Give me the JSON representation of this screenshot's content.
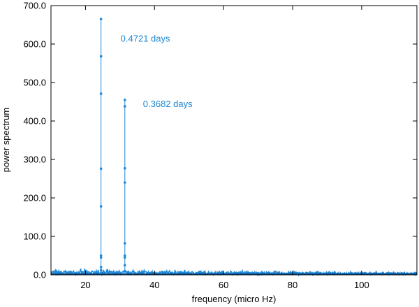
{
  "chart_data": {
    "type": "line",
    "title": "",
    "xlabel": "frequency (micro Hz)",
    "ylabel": "power spectrum",
    "xlim": [
      10,
      116
    ],
    "ylim": [
      0,
      700
    ],
    "x_ticks": [
      20,
      40,
      60,
      80,
      100
    ],
    "y_ticks": [
      0,
      100,
      200,
      300,
      400,
      500,
      600,
      700
    ],
    "x_tick_labels": [
      "20",
      "40",
      "60",
      "80",
      "100"
    ],
    "y_tick_labels": [
      "0.0",
      "100.0",
      "200.0",
      "300.0",
      "400.0",
      "500.0",
      "600.0",
      "700.0"
    ],
    "grid": false,
    "series_color": "#1e88d6",
    "baseline_color": "#0b5aa0",
    "peaks": [
      {
        "frequency": 24.5,
        "power": [
          665,
          568,
          471,
          276,
          178,
          50,
          45,
          20,
          12
        ],
        "label": "0.4721 days"
      },
      {
        "frequency": 31.4,
        "power": [
          455,
          438,
          277,
          240,
          82,
          50,
          45,
          25,
          10
        ],
        "label": "0.3682 days"
      }
    ],
    "noise": {
      "x_range": [
        10,
        116
      ],
      "typical_power": [
        1,
        10
      ]
    }
  }
}
